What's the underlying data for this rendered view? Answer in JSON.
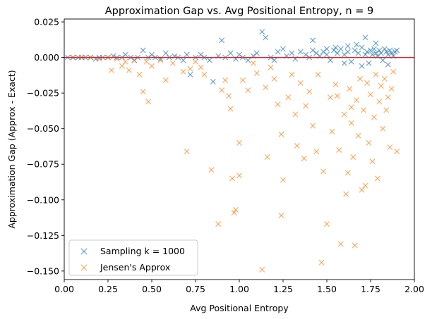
{
  "chart_data": {
    "type": "scatter",
    "title": "Approximation Gap vs. Avg Positional Entropy, n = 9",
    "xlabel": "Avg Positional Entropy",
    "ylabel": "Approximation Gap (Approx - Exact)",
    "xlim": [
      0.0,
      2.0
    ],
    "ylim": [
      -0.156,
      0.027
    ],
    "xticks": [
      0.0,
      0.25,
      0.5,
      0.75,
      1.0,
      1.25,
      1.5,
      1.75,
      2.0
    ],
    "xtick_labels": [
      "0.00",
      "0.25",
      "0.50",
      "0.75",
      "1.00",
      "1.25",
      "1.50",
      "1.75",
      "2.00"
    ],
    "yticks": [
      0.025,
      0.0,
      -0.025,
      -0.05,
      -0.075,
      -0.1,
      -0.125,
      -0.15
    ],
    "ytick_labels": [
      "0.025",
      "0.000",
      "−0.025",
      "−0.050",
      "−0.075",
      "−0.100",
      "−0.125",
      "−0.150"
    ],
    "grid": false,
    "legend_position": "lower-left",
    "reference_line": {
      "y": 0.0,
      "color": "#d62728"
    },
    "series": [
      {
        "name": "Sampling k = 1000",
        "marker": "x",
        "color": "#1f77b4",
        "points": [
          [
            0.02,
            0.0
          ],
          [
            0.05,
            0.0
          ],
          [
            0.08,
            0.0
          ],
          [
            0.1,
            0.0
          ],
          [
            0.12,
            0.0
          ],
          [
            0.15,
            0.0
          ],
          [
            0.18,
            -0.001
          ],
          [
            0.2,
            0.0
          ],
          [
            0.22,
            0.0
          ],
          [
            0.25,
            0.0
          ],
          [
            0.28,
            0.001
          ],
          [
            0.3,
            0.0
          ],
          [
            0.33,
            0.0
          ],
          [
            0.35,
            0.002
          ],
          [
            0.38,
            0.0
          ],
          [
            0.4,
            -0.002
          ],
          [
            0.42,
            0.0
          ],
          [
            0.45,
            0.005
          ],
          [
            0.48,
            0.0
          ],
          [
            0.5,
            0.002
          ],
          [
            0.52,
            0.0
          ],
          [
            0.55,
            -0.001
          ],
          [
            0.58,
            0.003
          ],
          [
            0.6,
            0.0
          ],
          [
            0.63,
            0.001
          ],
          [
            0.65,
            0.0
          ],
          [
            0.68,
            -0.002
          ],
          [
            0.7,
            0.002
          ],
          [
            0.72,
            -0.012
          ],
          [
            0.75,
            0.0
          ],
          [
            0.78,
            0.002
          ],
          [
            0.8,
            0.0
          ],
          [
            0.83,
            -0.002
          ],
          [
            0.85,
            -0.017
          ],
          [
            0.88,
            0.001
          ],
          [
            0.9,
            0.012
          ],
          [
            0.92,
            0.0
          ],
          [
            0.95,
            0.003
          ],
          [
            0.98,
            -0.001
          ],
          [
            1.0,
            0.002
          ],
          [
            1.02,
            0.0
          ],
          [
            1.05,
            -0.002
          ],
          [
            1.08,
            0.001
          ],
          [
            1.1,
            0.003
          ],
          [
            1.13,
            0.018
          ],
          [
            1.15,
            0.014
          ],
          [
            1.18,
            0.0
          ],
          [
            1.2,
            -0.002
          ],
          [
            1.22,
            0.004
          ],
          [
            1.25,
            0.006
          ],
          [
            1.27,
            0.001
          ],
          [
            1.3,
            0.003
          ],
          [
            1.32,
            -0.001
          ],
          [
            1.35,
            0.004
          ],
          [
            1.38,
            0.002
          ],
          [
            1.4,
            0.0
          ],
          [
            1.42,
            0.005
          ],
          [
            1.44,
            0.003
          ],
          [
            1.46,
            0.001
          ],
          [
            1.48,
            0.004
          ],
          [
            1.5,
            0.002
          ],
          [
            1.52,
            -0.002
          ],
          [
            1.54,
            0.005
          ],
          [
            1.56,
            0.003
          ],
          [
            1.58,
            0.006
          ],
          [
            1.6,
            0.002
          ],
          [
            1.62,
            0.004
          ],
          [
            1.64,
            -0.003
          ],
          [
            1.66,
            0.005
          ],
          [
            1.68,
            0.003
          ],
          [
            1.7,
            0.007
          ],
          [
            1.72,
            0.002
          ],
          [
            1.73,
            0.004
          ],
          [
            1.74,
            -0.004
          ],
          [
            1.75,
            0.005
          ],
          [
            1.76,
            0.002
          ],
          [
            1.77,
            0.006
          ],
          [
            1.78,
            0.003
          ],
          [
            1.79,
            0.001
          ],
          [
            1.8,
            0.005
          ],
          [
            1.81,
            0.003
          ],
          [
            1.82,
            -0.002
          ],
          [
            1.83,
            0.006
          ],
          [
            1.84,
            0.004
          ],
          [
            1.85,
            0.002
          ],
          [
            1.86,
            0.005
          ],
          [
            1.87,
            0.003
          ],
          [
            1.88,
            0.001
          ],
          [
            1.89,
            0.004
          ],
          [
            1.9,
            0.005
          ],
          [
            1.72,
            0.014
          ],
          [
            1.67,
            0.009
          ],
          [
            1.55,
            0.007
          ],
          [
            1.42,
            0.012
          ],
          [
            1.62,
            0.008
          ],
          [
            1.78,
            0.01
          ],
          [
            1.85,
            -0.005
          ],
          [
            1.6,
            -0.004
          ],
          [
            1.5,
            0.006
          ],
          [
            1.7,
            -0.006
          ]
        ]
      },
      {
        "name": "Jensen's Approx",
        "marker": "x",
        "color": "#ff7f0e",
        "points": [
          [
            0.05,
            0.0
          ],
          [
            0.1,
            0.0
          ],
          [
            0.15,
            0.0
          ],
          [
            0.2,
            -0.001
          ],
          [
            0.25,
            0.0
          ],
          [
            0.27,
            -0.009
          ],
          [
            0.3,
            -0.001
          ],
          [
            0.33,
            -0.006
          ],
          [
            0.35,
            -0.003
          ],
          [
            0.37,
            -0.009
          ],
          [
            0.4,
            -0.002
          ],
          [
            0.43,
            -0.012
          ],
          [
            0.45,
            -0.024
          ],
          [
            0.47,
            -0.003
          ],
          [
            0.48,
            -0.031
          ],
          [
            0.5,
            -0.006
          ],
          [
            0.55,
            -0.002
          ],
          [
            0.58,
            -0.016
          ],
          [
            0.62,
            -0.004
          ],
          [
            0.68,
            -0.01
          ],
          [
            0.7,
            -0.066
          ],
          [
            0.72,
            -0.008
          ],
          [
            0.75,
            -0.003
          ],
          [
            0.78,
            -0.007
          ],
          [
            0.8,
            -0.012
          ],
          [
            0.84,
            -0.079
          ],
          [
            0.88,
            -0.117
          ],
          [
            0.9,
            -0.023
          ],
          [
            0.92,
            -0.016
          ],
          [
            0.94,
            -0.027
          ],
          [
            0.95,
            -0.036
          ],
          [
            0.96,
            -0.085
          ],
          [
            0.97,
            -0.109
          ],
          [
            0.98,
            -0.107
          ],
          [
            1.0,
            -0.06
          ],
          [
            1.0,
            -0.083
          ],
          [
            1.02,
            -0.016
          ],
          [
            1.05,
            -0.023
          ],
          [
            1.08,
            -0.004
          ],
          [
            1.1,
            -0.011
          ],
          [
            1.13,
            -0.149
          ],
          [
            1.15,
            -0.021
          ],
          [
            1.16,
            -0.07
          ],
          [
            1.18,
            -0.007
          ],
          [
            1.2,
            -0.015
          ],
          [
            1.22,
            -0.033
          ],
          [
            1.24,
            -0.054
          ],
          [
            1.24,
            -0.111
          ],
          [
            1.25,
            -0.086
          ],
          [
            1.28,
            -0.028
          ],
          [
            1.3,
            -0.012
          ],
          [
            1.32,
            -0.04
          ],
          [
            1.33,
            -0.062
          ],
          [
            1.35,
            -0.018
          ],
          [
            1.37,
            -0.071
          ],
          [
            1.38,
            -0.034
          ],
          [
            1.4,
            -0.024
          ],
          [
            1.42,
            -0.048
          ],
          [
            1.44,
            -0.066
          ],
          [
            1.45,
            -0.012
          ],
          [
            1.47,
            -0.144
          ],
          [
            1.48,
            -0.08
          ],
          [
            1.5,
            -0.117
          ],
          [
            1.52,
            -0.028
          ],
          [
            1.53,
            -0.052
          ],
          [
            1.55,
            -0.019
          ],
          [
            1.57,
            -0.065
          ],
          [
            1.58,
            -0.131
          ],
          [
            1.6,
            -0.04
          ],
          [
            1.61,
            -0.096
          ],
          [
            1.62,
            -0.081
          ],
          [
            1.63,
            -0.022
          ],
          [
            1.64,
            -0.046
          ],
          [
            1.65,
            -0.07
          ],
          [
            1.66,
            -0.132
          ],
          [
            1.67,
            -0.03
          ],
          [
            1.68,
            -0.055
          ],
          [
            1.69,
            -0.015
          ],
          [
            1.7,
            -0.093
          ],
          [
            1.71,
            -0.037
          ],
          [
            1.72,
            -0.09
          ],
          [
            1.73,
            -0.018
          ],
          [
            1.74,
            -0.06
          ],
          [
            1.75,
            -0.026
          ],
          [
            1.76,
            -0.073
          ],
          [
            1.77,
            -0.042
          ],
          [
            1.78,
            -0.012
          ],
          [
            1.79,
            -0.085
          ],
          [
            1.8,
            -0.031
          ],
          [
            1.81,
            -0.02
          ],
          [
            1.82,
            -0.05
          ],
          [
            1.83,
            -0.015
          ],
          [
            1.84,
            -0.037
          ],
          [
            1.85,
            -0.028
          ],
          [
            1.86,
            -0.063
          ],
          [
            1.87,
            -0.022
          ],
          [
            1.88,
            -0.01
          ],
          [
            1.9,
            -0.066
          ],
          [
            1.56,
            -0.027
          ],
          [
            1.64,
            -0.035
          ]
        ]
      }
    ]
  }
}
